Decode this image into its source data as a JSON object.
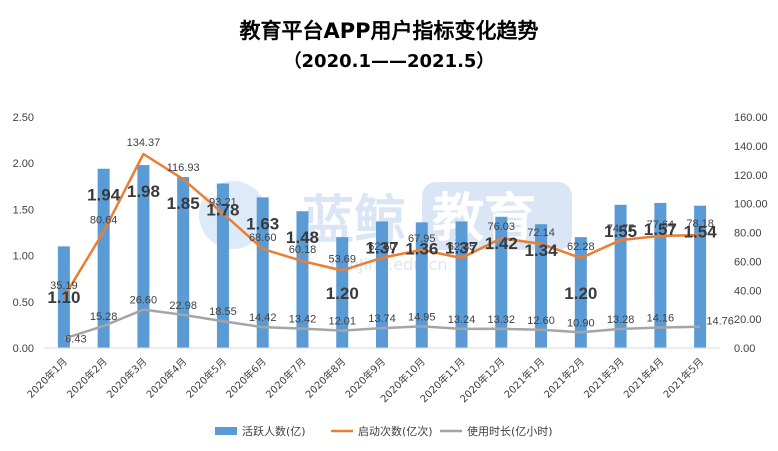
{
  "chart_data": {
    "type": "bar",
    "title": "教育平台APP用户指标变化趋势",
    "subtitle": "（2020.1——2021.5）",
    "categories": [
      "2020年1月",
      "2020年2月",
      "2020年3月",
      "2020年4月",
      "2020年5月",
      "2020年6月",
      "2020年7月",
      "2020年8月",
      "2020年9月",
      "2020年10月",
      "2020年11月",
      "2020年12月",
      "2021年1月",
      "2021年2月",
      "2021年3月",
      "2021年4月",
      "2021年5月"
    ],
    "y_left": {
      "min": 0,
      "max": 2.5,
      "step": 0.5,
      "ticks": [
        "0.00",
        "0.50",
        "1.00",
        "1.50",
        "2.00",
        "2.50"
      ]
    },
    "y_right": {
      "min": 0,
      "max": 160,
      "step": 20,
      "ticks": [
        "0.00",
        "20.00",
        "40.00",
        "60.00",
        "80.00",
        "100.00",
        "120.00",
        "140.00",
        "160.00"
      ]
    },
    "series": [
      {
        "name": "活跃人数(亿)",
        "kind": "bar",
        "axis": "left",
        "color": "#5B9BD5",
        "values": [
          1.1,
          1.94,
          1.98,
          1.85,
          1.78,
          1.63,
          1.48,
          1.2,
          1.37,
          1.36,
          1.37,
          1.42,
          1.34,
          1.2,
          1.55,
          1.57,
          1.54
        ],
        "labels": [
          "1.10",
          "1.94",
          "1.98",
          "1.85",
          "1.78",
          "1.63",
          "1.48",
          "1.20",
          "1.37",
          "1.36",
          "1.37",
          "1.42",
          "1.34",
          "1.20",
          "1.55",
          "1.57",
          "1.54"
        ]
      },
      {
        "name": "启动次数(亿次)",
        "kind": "line",
        "axis": "right",
        "color": "#ED7D31",
        "values": [
          35.19,
          80.64,
          134.37,
          116.93,
          93.21,
          68.6,
          60.18,
          53.69,
          62.5,
          67.95,
          62.35,
          76.03,
          72.14,
          62.28,
          74.77,
          77.64,
          78.18
        ],
        "labels": [
          "35.19",
          "80.64",
          "134.37",
          "116.93",
          "93.21",
          "68.60",
          "60.18",
          "53.69",
          "62.50",
          "67.95",
          "62.35",
          "76.03",
          "72.14",
          "62.28",
          "74.77",
          "77.64",
          "78.18"
        ]
      },
      {
        "name": "使用时长(亿小时)",
        "kind": "line",
        "axis": "right",
        "color": "#A5A5A5",
        "values": [
          6.43,
          15.28,
          26.6,
          22.98,
          18.55,
          14.42,
          13.42,
          12.01,
          13.74,
          14.95,
          13.24,
          13.32,
          12.6,
          10.9,
          13.28,
          14.16,
          14.76
        ],
        "labels": [
          "6.43",
          "15.28",
          "26.60",
          "22.98",
          "18.55",
          "14.42",
          "13.42",
          "12.01",
          "13.74",
          "14.95",
          "13.24",
          "13.32",
          "12.60",
          "10.90",
          "13.28",
          "14.16",
          "14.76"
        ]
      }
    ],
    "legend": "bottom",
    "grid": false
  },
  "watermark": {
    "text": "蓝鲸",
    "badge": "教育",
    "pinyin": "LanJing.edu.cn"
  }
}
